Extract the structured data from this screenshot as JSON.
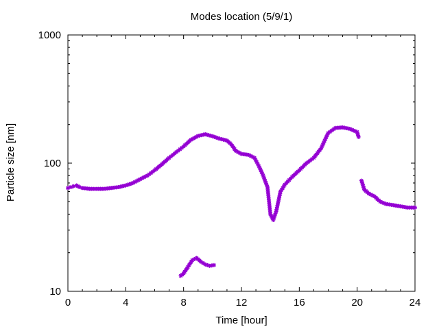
{
  "chart_data": {
    "type": "scatter",
    "title": "Modes location (5/9/1)",
    "xlabel": "Time [hour]",
    "ylabel": "Particle size [nm]",
    "xlim": [
      0,
      24
    ],
    "ylim": [
      10,
      1000
    ],
    "yscale": "log",
    "xticks": [
      0,
      4,
      8,
      12,
      16,
      20,
      24
    ],
    "yticks": [
      10,
      100,
      1000
    ],
    "xtick_labels": [
      "0",
      "4",
      "8",
      "12",
      "16",
      "20",
      "24"
    ],
    "ytick_labels": [
      "10",
      "100",
      "1000"
    ],
    "grid": false,
    "marker_color": "#9400d3",
    "series": [
      {
        "points": [
          [
            0.0,
            64
          ],
          [
            0.2,
            65
          ],
          [
            0.4,
            66
          ],
          [
            0.6,
            67
          ],
          [
            0.8,
            65
          ],
          [
            1.0,
            64
          ],
          [
            1.5,
            63
          ],
          [
            2.0,
            63
          ],
          [
            2.5,
            63
          ],
          [
            3.0,
            64
          ],
          [
            3.5,
            65
          ],
          [
            4.0,
            67
          ],
          [
            4.5,
            70
          ],
          [
            5.0,
            75
          ],
          [
            5.5,
            80
          ],
          [
            6.0,
            88
          ],
          [
            6.5,
            98
          ],
          [
            7.0,
            110
          ],
          [
            7.5,
            122
          ],
          [
            8.0,
            135
          ],
          [
            8.5,
            152
          ],
          [
            9.0,
            163
          ],
          [
            9.5,
            168
          ],
          [
            10.0,
            162
          ],
          [
            10.5,
            155
          ],
          [
            11.0,
            150
          ],
          [
            11.3,
            140
          ],
          [
            11.6,
            125
          ],
          [
            12.0,
            118
          ],
          [
            12.5,
            116
          ],
          [
            12.9,
            110
          ],
          [
            13.2,
            95
          ],
          [
            13.5,
            80
          ],
          [
            13.8,
            65
          ],
          [
            14.0,
            40
          ],
          [
            14.2,
            36
          ],
          [
            14.4,
            42
          ],
          [
            14.7,
            60
          ],
          [
            15.0,
            68
          ],
          [
            15.5,
            78
          ],
          [
            16.0,
            88
          ],
          [
            16.5,
            100
          ],
          [
            17.0,
            110
          ],
          [
            17.5,
            130
          ],
          [
            18.0,
            172
          ],
          [
            18.5,
            188
          ],
          [
            19.0,
            190
          ],
          [
            19.5,
            185
          ],
          [
            20.0,
            175
          ],
          [
            20.1,
            160
          ]
        ]
      },
      {
        "points": [
          [
            20.3,
            73
          ],
          [
            20.5,
            62
          ],
          [
            20.8,
            58
          ],
          [
            21.2,
            55
          ],
          [
            21.6,
            50
          ],
          [
            22.0,
            48
          ],
          [
            22.5,
            47
          ],
          [
            23.0,
            46
          ],
          [
            23.5,
            45
          ],
          [
            24.0,
            45
          ]
        ]
      },
      {
        "points": [
          [
            7.8,
            13.2
          ],
          [
            8.0,
            13.8
          ],
          [
            8.3,
            15.5
          ],
          [
            8.6,
            17.5
          ],
          [
            8.9,
            18.2
          ],
          [
            9.2,
            17.0
          ],
          [
            9.5,
            16.2
          ],
          [
            9.8,
            15.8
          ],
          [
            10.1,
            16.0
          ]
        ]
      }
    ]
  }
}
